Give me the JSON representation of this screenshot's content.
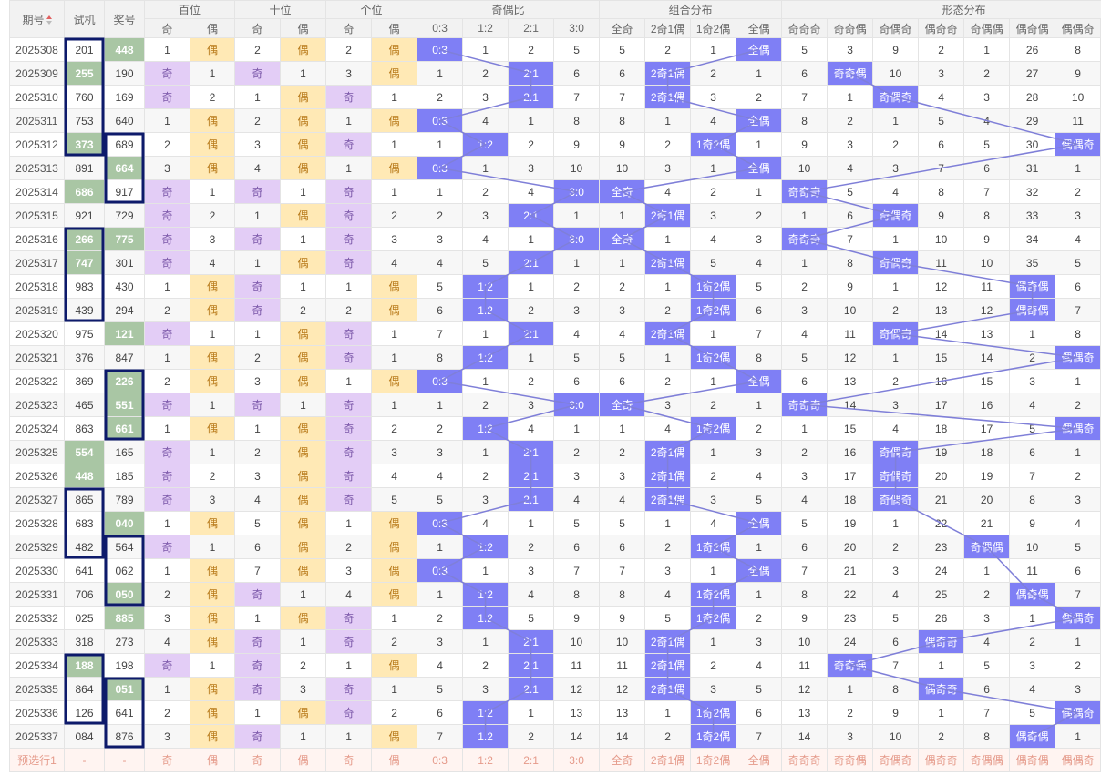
{
  "header": {
    "period_label": "期号",
    "test_label": "试机",
    "prize_label": "奖号",
    "groups": [
      "百位",
      "十位",
      "个位",
      "奇偶比",
      "组合分布",
      "形态分布"
    ],
    "sub_hundreds": [
      "奇",
      "偶"
    ],
    "sub_tens": [
      "奇",
      "偶"
    ],
    "sub_units": [
      "奇",
      "偶"
    ],
    "sub_ratio": [
      "0:3",
      "1:2",
      "2:1",
      "3:0"
    ],
    "sub_combo": [
      "全奇",
      "2奇1偶",
      "1奇2偶",
      "全偶"
    ],
    "sub_pattern": [
      "奇奇奇",
      "奇奇偶",
      "奇偶奇",
      "偶奇奇",
      "奇偶偶",
      "偶奇偶",
      "偶偶奇",
      "偶偶偶"
    ]
  },
  "colors": {
    "highlight_green": "#a9c6a4",
    "odd_purple": "#e3cdf6",
    "even_yellow": "#ffe9b5",
    "marker_blue": "#7f7ff5",
    "box_navy": "#0d1a6b"
  },
  "rows": [
    {
      "id": "2025308",
      "t": "201",
      "p": "448",
      "h": "p",
      "r": [
        1,
        "偶",
        2,
        "偶",
        2,
        "偶",
        "0:3",
        1,
        2,
        5,
        5,
        2,
        1,
        "全偶",
        5,
        3,
        9,
        2,
        1,
        26,
        8,
        ""
      ]
    },
    {
      "id": "2025309",
      "t": "255",
      "p": "190",
      "h": "t",
      "r": [
        "奇",
        1,
        "奇",
        1,
        3,
        "偶",
        1,
        2,
        "2:1",
        6,
        6,
        "2奇1偶",
        2,
        1,
        6,
        "奇奇偶",
        10,
        3,
        2,
        27,
        9,
        ""
      ]
    },
    {
      "id": "2025310",
      "t": "760",
      "p": "169",
      "h": "",
      "r": [
        "奇",
        2,
        1,
        "偶",
        "奇",
        1,
        2,
        3,
        "2:1",
        7,
        7,
        "2奇1偶",
        3,
        2,
        7,
        1,
        "奇偶奇",
        4,
        3,
        28,
        10,
        ""
      ]
    },
    {
      "id": "2025311",
      "t": "753",
      "p": "640",
      "h": "",
      "r": [
        1,
        "偶",
        2,
        "偶",
        1,
        "偶",
        "0:3",
        4,
        1,
        8,
        8,
        1,
        4,
        "全偶",
        8,
        2,
        1,
        5,
        4,
        29,
        11,
        ""
      ]
    },
    {
      "id": "2025312",
      "t": "373",
      "p": "689",
      "h": "t",
      "r": [
        2,
        "偶",
        3,
        "偶",
        "奇",
        1,
        1,
        "1:2",
        2,
        9,
        9,
        2,
        "1奇2偶",
        1,
        9,
        3,
        2,
        6,
        5,
        30,
        "偶偶奇",
        ""
      ]
    },
    {
      "id": "2025313",
      "t": "891",
      "p": "664",
      "h": "p",
      "r": [
        3,
        "偶",
        4,
        "偶",
        1,
        "偶",
        "0:3",
        1,
        3,
        10,
        10,
        3,
        1,
        "全偶",
        10,
        4,
        3,
        7,
        6,
        31,
        1,
        ""
      ]
    },
    {
      "id": "2025314",
      "t": "686",
      "p": "917",
      "h": "t",
      "r": [
        "奇",
        1,
        "奇",
        1,
        "奇",
        1,
        1,
        2,
        4,
        "3:0",
        "全奇",
        4,
        2,
        1,
        "奇奇奇",
        5,
        4,
        8,
        7,
        32,
        2,
        ""
      ]
    },
    {
      "id": "2025315",
      "t": "921",
      "p": "729",
      "h": "",
      "r": [
        "奇",
        2,
        1,
        "偶",
        "奇",
        2,
        2,
        3,
        "2:1",
        1,
        1,
        "2奇1偶",
        3,
        2,
        1,
        6,
        "奇偶奇",
        9,
        8,
        33,
        3,
        ""
      ]
    },
    {
      "id": "2025316",
      "t": "266",
      "p": "775",
      "h": "tp",
      "r": [
        "奇",
        3,
        "奇",
        1,
        "奇",
        3,
        3,
        4,
        1,
        "3:0",
        "全奇",
        1,
        4,
        3,
        "奇奇奇",
        7,
        1,
        10,
        9,
        34,
        4,
        ""
      ]
    },
    {
      "id": "2025317",
      "t": "747",
      "p": "301",
      "h": "t",
      "r": [
        "奇",
        4,
        1,
        "偶",
        "奇",
        4,
        4,
        5,
        "2:1",
        1,
        1,
        "2奇1偶",
        5,
        4,
        1,
        8,
        "奇偶奇",
        11,
        10,
        35,
        5,
        ""
      ]
    },
    {
      "id": "2025318",
      "t": "983",
      "p": "430",
      "h": "",
      "r": [
        1,
        "偶",
        "奇",
        1,
        1,
        "偶",
        5,
        "1:2",
        1,
        2,
        2,
        1,
        "1奇2偶",
        5,
        2,
        9,
        1,
        12,
        11,
        "偶奇偶",
        6,
        ""
      ]
    },
    {
      "id": "2025319",
      "t": "439",
      "p": "294",
      "h": "",
      "r": [
        2,
        "偶",
        "奇",
        2,
        2,
        "偶",
        6,
        "1:2",
        2,
        3,
        3,
        2,
        "1奇2偶",
        6,
        3,
        10,
        2,
        13,
        12,
        "偶奇偶",
        7,
        ""
      ]
    },
    {
      "id": "2025320",
      "t": "975",
      "p": "121",
      "h": "p",
      "r": [
        "奇",
        1,
        1,
        "偶",
        "奇",
        1,
        7,
        1,
        "2:1",
        4,
        4,
        "2奇1偶",
        1,
        7,
        4,
        11,
        "奇偶奇",
        14,
        13,
        1,
        8,
        ""
      ]
    },
    {
      "id": "2025321",
      "t": "376",
      "p": "847",
      "h": "",
      "r": [
        1,
        "偶",
        2,
        "偶",
        "奇",
        1,
        8,
        "1:2",
        1,
        5,
        5,
        1,
        "1奇2偶",
        8,
        5,
        12,
        1,
        15,
        14,
        2,
        "偶偶奇",
        ""
      ]
    },
    {
      "id": "2025322",
      "t": "369",
      "p": "226",
      "h": "p",
      "r": [
        2,
        "偶",
        3,
        "偶",
        1,
        "偶",
        "0:3",
        1,
        2,
        6,
        6,
        2,
        1,
        "全偶",
        6,
        13,
        2,
        16,
        15,
        3,
        1,
        ""
      ]
    },
    {
      "id": "2025323",
      "t": "465",
      "p": "551",
      "h": "p",
      "r": [
        "奇",
        1,
        "奇",
        1,
        "奇",
        1,
        1,
        2,
        3,
        "3:0",
        "全奇",
        3,
        2,
        1,
        "奇奇奇",
        14,
        3,
        17,
        16,
        4,
        2,
        ""
      ]
    },
    {
      "id": "2025324",
      "t": "863",
      "p": "661",
      "h": "p",
      "r": [
        1,
        "偶",
        1,
        "偶",
        "奇",
        2,
        2,
        "1:2",
        4,
        1,
        1,
        4,
        "1奇2偶",
        2,
        1,
        15,
        4,
        18,
        17,
        5,
        "偶偶奇",
        ""
      ]
    },
    {
      "id": "2025325",
      "t": "554",
      "p": "165",
      "h": "t",
      "r": [
        "奇",
        1,
        2,
        "偶",
        "奇",
        3,
        3,
        1,
        "2:1",
        2,
        2,
        "2奇1偶",
        1,
        3,
        2,
        16,
        "奇偶奇",
        19,
        18,
        6,
        1,
        ""
      ]
    },
    {
      "id": "2025326",
      "t": "448",
      "p": "185",
      "h": "t",
      "r": [
        "奇",
        2,
        3,
        "偶",
        "奇",
        4,
        4,
        2,
        "2:1",
        3,
        3,
        "2奇1偶",
        2,
        4,
        3,
        17,
        "奇偶奇",
        20,
        19,
        7,
        2,
        ""
      ]
    },
    {
      "id": "2025327",
      "t": "865",
      "p": "789",
      "h": "",
      "r": [
        "奇",
        3,
        4,
        "偶",
        "奇",
        5,
        5,
        3,
        "2:1",
        4,
        4,
        "2奇1偶",
        3,
        5,
        4,
        18,
        "奇偶奇",
        21,
        20,
        8,
        3,
        ""
      ]
    },
    {
      "id": "2025328",
      "t": "683",
      "p": "040",
      "h": "p",
      "r": [
        1,
        "偶",
        5,
        "偶",
        1,
        "偶",
        "0:3",
        4,
        1,
        5,
        5,
        1,
        4,
        "全偶",
        5,
        19,
        1,
        22,
        21,
        9,
        4,
        ""
      ]
    },
    {
      "id": "2025329",
      "t": "482",
      "p": "564",
      "h": "",
      "r": [
        "奇",
        1,
        6,
        "偶",
        2,
        "偶",
        1,
        "1:2",
        2,
        6,
        6,
        2,
        "1奇2偶",
        1,
        6,
        20,
        2,
        23,
        "奇偶偶",
        10,
        5,
        ""
      ]
    },
    {
      "id": "2025330",
      "t": "641",
      "p": "062",
      "h": "",
      "r": [
        1,
        "偶",
        7,
        "偶",
        3,
        "偶",
        "0:3",
        1,
        3,
        7,
        7,
        3,
        1,
        "全偶",
        7,
        21,
        3,
        24,
        1,
        11,
        6,
        ""
      ]
    },
    {
      "id": "2025331",
      "t": "706",
      "p": "050",
      "h": "p",
      "r": [
        2,
        "偶",
        "奇",
        1,
        4,
        "偶",
        1,
        "1:2",
        4,
        8,
        8,
        4,
        "1奇2偶",
        1,
        8,
        22,
        4,
        25,
        2,
        "偶奇偶",
        7,
        ""
      ]
    },
    {
      "id": "2025332",
      "t": "025",
      "p": "885",
      "h": "p",
      "r": [
        3,
        "偶",
        1,
        "偶",
        "奇",
        1,
        2,
        "1:2",
        5,
        9,
        9,
        5,
        "1奇2偶",
        2,
        9,
        23,
        5,
        26,
        3,
        1,
        "偶偶奇",
        ""
      ]
    },
    {
      "id": "2025333",
      "t": "318",
      "p": "273",
      "h": "",
      "r": [
        4,
        "偶",
        "奇",
        1,
        "奇",
        2,
        3,
        1,
        "2:1",
        10,
        10,
        "2奇1偶",
        1,
        3,
        10,
        24,
        6,
        "偶奇奇",
        4,
        2,
        1,
        ""
      ]
    },
    {
      "id": "2025334",
      "t": "188",
      "p": "198",
      "h": "t",
      "r": [
        "奇",
        1,
        "奇",
        2,
        1,
        "偶",
        4,
        2,
        "2:1",
        11,
        11,
        "2奇1偶",
        2,
        4,
        11,
        "奇奇偶",
        7,
        1,
        5,
        3,
        2,
        ""
      ]
    },
    {
      "id": "2025335",
      "t": "864",
      "p": "051",
      "h": "p",
      "r": [
        1,
        "偶",
        "奇",
        3,
        "奇",
        1,
        5,
        3,
        "2:1",
        12,
        12,
        "2奇1偶",
        3,
        5,
        12,
        1,
        8,
        "偶奇奇",
        6,
        4,
        3,
        ""
      ]
    },
    {
      "id": "2025336",
      "t": "126",
      "p": "641",
      "h": "",
      "r": [
        2,
        "偶",
        1,
        "偶",
        "奇",
        2,
        6,
        "1:2",
        1,
        13,
        13,
        1,
        "1奇2偶",
        6,
        13,
        2,
        9,
        1,
        7,
        5,
        "偶偶奇",
        ""
      ]
    },
    {
      "id": "2025337",
      "t": "084",
      "p": "876",
      "h": "",
      "r": [
        3,
        "偶",
        "奇",
        1,
        1,
        "偶",
        7,
        "1:2",
        2,
        14,
        14,
        2,
        "1奇2偶",
        7,
        14,
        3,
        10,
        2,
        8,
        "偶奇偶",
        1,
        ""
      ]
    }
  ],
  "prediction": {
    "label": "预选行1",
    "test": "-",
    "prize": "-",
    "cells": [
      "奇",
      "偶",
      "奇",
      "偶",
      "奇",
      "偶",
      "0:3",
      "1:2",
      "2:1",
      "3:0",
      "全奇",
      "2奇1偶",
      "1奇2偶",
      "全偶",
      "奇奇奇",
      "奇奇偶",
      "奇偶奇",
      "偶奇奇",
      "奇偶偶",
      "偶奇偶",
      "偶偶奇",
      "偶偶偶"
    ]
  },
  "boxes": [
    {
      "col": "t",
      "from": 0,
      "to": 4
    },
    {
      "col": "t",
      "from": 8,
      "to": 11
    },
    {
      "col": "t",
      "from": 19,
      "to": 21
    },
    {
      "col": "t",
      "from": 26,
      "to": 28
    },
    {
      "col": "p",
      "from": 4,
      "to": 6
    },
    {
      "col": "p",
      "from": 14,
      "to": 16
    },
    {
      "col": "p",
      "from": 21,
      "to": 23
    },
    {
      "col": "p",
      "from": 27,
      "to": 29
    }
  ]
}
